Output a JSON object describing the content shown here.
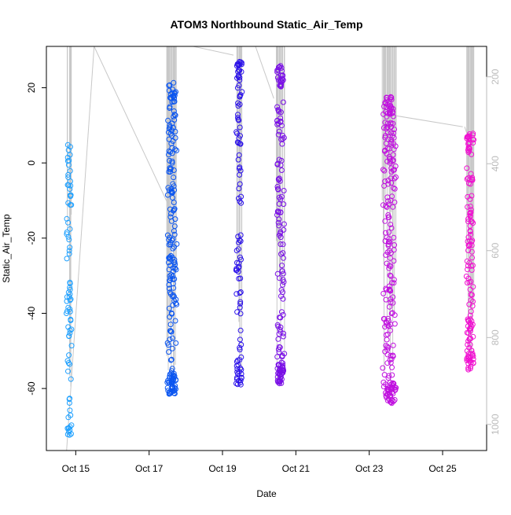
{
  "chart_data": {
    "type": "scatter",
    "title": "ATOM3 Northbound Static_Air_Temp",
    "xlabel": "Date",
    "ylabel": "Static_Air_Temp",
    "x_ticks": [
      "Oct 15",
      "Oct 17",
      "Oct 19",
      "Oct 21",
      "Oct 23",
      "Oct 25"
    ],
    "x_range_days": [
      14.2,
      26.2
    ],
    "y_ticks": [
      20,
      0,
      -20,
      -40,
      -60
    ],
    "ylim": [
      -76.5,
      31
    ],
    "right_axis": {
      "ticks": [
        200,
        400,
        600,
        800,
        1000
      ],
      "range": [
        1060,
        130
      ],
      "tick_color": "#bbbbbb"
    },
    "grid": false,
    "legend": "none",
    "marker": "open-circle",
    "line_color": "#c8c8c8",
    "series": [
      {
        "day": 14.82,
        "width_days": 0.16,
        "y_range": [
          -73,
          5
        ],
        "color": "#1ea0ff",
        "points": 80,
        "press_line": [
          [
            14.75,
            1060
          ],
          [
            15.5,
            130
          ]
        ]
      },
      {
        "day": 17.62,
        "width_days": 0.28,
        "y_range": [
          -61.5,
          21.5
        ],
        "color": "#0a55f0",
        "points": 200,
        "press_line": [
          [
            15.5,
            130
          ],
          [
            17.5,
            490
          ]
        ]
      },
      {
        "day": 19.45,
        "width_days": 0.18,
        "y_range": [
          -59,
          27
        ],
        "color": "#2a10ea",
        "points": 110,
        "press_line": [
          [
            18.2,
            130
          ],
          [
            19.3,
            150
          ]
        ]
      },
      {
        "day": 20.58,
        "width_days": 0.24,
        "y_range": [
          -59,
          26
        ],
        "color": "#7a10e6",
        "points": 160,
        "press_line": [
          [
            19.9,
            130
          ],
          [
            20.4,
            250
          ]
        ]
      },
      {
        "day": 23.55,
        "width_days": 0.4,
        "y_range": [
          -64,
          18
        ],
        "color": "#c010df",
        "points": 230,
        "press_line": [
          [
            23.75,
            290
          ],
          [
            25.55,
            315
          ]
        ]
      },
      {
        "day": 25.75,
        "width_days": 0.22,
        "y_range": [
          -55,
          8
        ],
        "color": "#f010d0",
        "points": 140,
        "press_line": [
          [
            25.6,
            315
          ],
          [
            25.7,
            340
          ]
        ]
      }
    ]
  }
}
